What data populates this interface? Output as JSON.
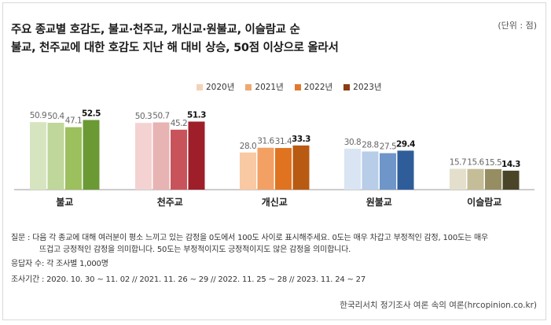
{
  "title_line1": "주요 종교별 호감도, 불교·천주교, 개신교·원불교, 이슬람교 순",
  "title_line2": "불교, 천주교에 대한 호감도 지난 해 대비 상승, 50점 이상으로 올라서",
  "unit": "(단위 : 점)",
  "legend": [
    {
      "label": "2020년",
      "color": "#f3d3b8"
    },
    {
      "label": "2021년",
      "color": "#f0a86e"
    },
    {
      "label": "2022년",
      "color": "#e07a2e"
    },
    {
      "label": "2023년",
      "color": "#8a3d12"
    }
  ],
  "chart_data": {
    "type": "bar",
    "categories": [
      "불교",
      "천주교",
      "개신교",
      "원불교",
      "이슬람교"
    ],
    "series": [
      {
        "name": "2020년",
        "values": [
          50.9,
          50.3,
          28.0,
          30.8,
          15.7
        ]
      },
      {
        "name": "2021년",
        "values": [
          50.4,
          50.7,
          31.6,
          28.8,
          15.6
        ]
      },
      {
        "name": "2022년",
        "values": [
          47.1,
          45.2,
          31.4,
          27.5,
          15.5
        ]
      },
      {
        "name": "2023년",
        "values": [
          52.5,
          51.3,
          33.3,
          29.4,
          14.3
        ]
      }
    ],
    "category_colors": [
      [
        "#d6e5bf",
        "#bfd79a",
        "#9cc05e",
        "#6b9a35"
      ],
      [
        "#f4d2d2",
        "#e8b3b3",
        "#c9535a",
        "#9e1f2a"
      ],
      [
        "#f9c9a3",
        "#f3a064",
        "#e0731f",
        "#b85a12"
      ],
      [
        "#d9e5f3",
        "#b7cde8",
        "#6f96c9",
        "#2f5d99"
      ],
      [
        "#e3dfcc",
        "#c4bd97",
        "#968d62",
        "#4a4429"
      ]
    ],
    "ylim": [
      0,
      60
    ]
  },
  "notes": {
    "question_line1": "질문 : 다음 각 종교에 대해 여러분이 평소 느끼고 있는 감정을 0도에서 100도 사이로 표시해주세요. 0도는 매우 차갑고 부정적인 감정, 100도는 매우",
    "question_line2": "뜨겁고 긍정적인 감정을 의미합니다. 50도는 부정적이지도 긍정적이지도 않은 감정을 의미합니다.",
    "respondents": "응답자 수: 각 조사별 1,000명",
    "period": "조사기간 : 2020. 10. 30 ~ 11. 02 // 2021. 11. 26 ~ 29 // 2022. 11. 25 ~ 28 // 2023. 11. 24 ~ 27"
  },
  "source": "한국리서치 정기조사 여론 속의 여론(hrcopinion.co.kr)"
}
